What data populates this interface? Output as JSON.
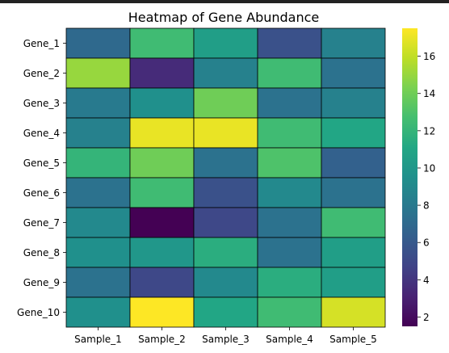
{
  "chart_data": {
    "type": "heatmap",
    "title": "Heatmap of Gene Abundance",
    "xlabel": "",
    "ylabel": "",
    "columns": [
      "Sample_1",
      "Sample_2",
      "Sample_3",
      "Sample_4",
      "Sample_5"
    ],
    "rows": [
      "Gene_1",
      "Gene_2",
      "Gene_3",
      "Gene_4",
      "Gene_5",
      "Gene_6",
      "Gene_7",
      "Gene_8",
      "Gene_9",
      "Gene_10"
    ],
    "values": [
      [
        7.0,
        12.5,
        10.5,
        5.5,
        8.5
      ],
      [
        15.0,
        3.5,
        8.5,
        12.5,
        7.5
      ],
      [
        8.0,
        9.5,
        14.0,
        7.5,
        8.5
      ],
      [
        8.5,
        17.0,
        17.0,
        12.5,
        11.0
      ],
      [
        12.0,
        14.0,
        7.5,
        13.0,
        6.5
      ],
      [
        7.5,
        12.5,
        5.5,
        9.0,
        7.5
      ],
      [
        9.0,
        1.5,
        5.0,
        7.5,
        12.5
      ],
      [
        9.5,
        10.0,
        11.5,
        7.5,
        10.5
      ],
      [
        7.5,
        5.0,
        9.0,
        11.5,
        10.5
      ],
      [
        9.5,
        17.5,
        11.0,
        12.5,
        16.5
      ]
    ],
    "colormap": "viridis",
    "vmin": 1.5,
    "vmax": 17.5,
    "colorbar_ticks": [
      2,
      4,
      6,
      8,
      10,
      12,
      14,
      16
    ],
    "cell_edge_color": "#000000",
    "grid": false,
    "legend": "colorbar-right"
  }
}
